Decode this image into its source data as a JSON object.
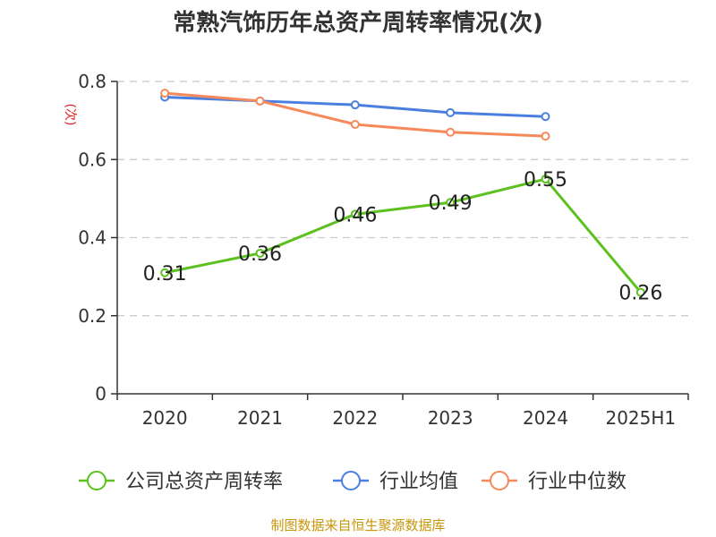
{
  "chart_data": {
    "type": "line",
    "title": "常熟汽饰历年总资产周转率情况(次)",
    "y_unit": "(次)",
    "categories": [
      "2020",
      "2021",
      "2022",
      "2023",
      "2024",
      "2025H1"
    ],
    "ylim": [
      0,
      0.8
    ],
    "y_ticks": [
      "0",
      "0.2",
      "0.4",
      "0.6",
      "0.8"
    ],
    "y_tick_values": [
      0,
      0.2,
      0.4,
      0.6,
      0.8
    ],
    "grid": true,
    "legend_position": "bottom",
    "series": [
      {
        "name": "公司总资产周转率",
        "color": "#5cc11e",
        "values": [
          0.31,
          0.36,
          0.46,
          0.49,
          0.55,
          0.26
        ],
        "labels": [
          "0.31",
          "0.36",
          "0.46",
          "0.49",
          "0.55",
          "0.26"
        ]
      },
      {
        "name": "行业均值",
        "color": "#4a7fe0",
        "values": [
          0.76,
          0.75,
          0.74,
          0.72,
          0.71,
          null
        ]
      },
      {
        "name": "行业中位数",
        "color": "#f5895a",
        "values": [
          0.77,
          0.75,
          0.69,
          0.67,
          0.66,
          null
        ]
      }
    ],
    "source": "制图数据来自恒生聚源数据库"
  }
}
